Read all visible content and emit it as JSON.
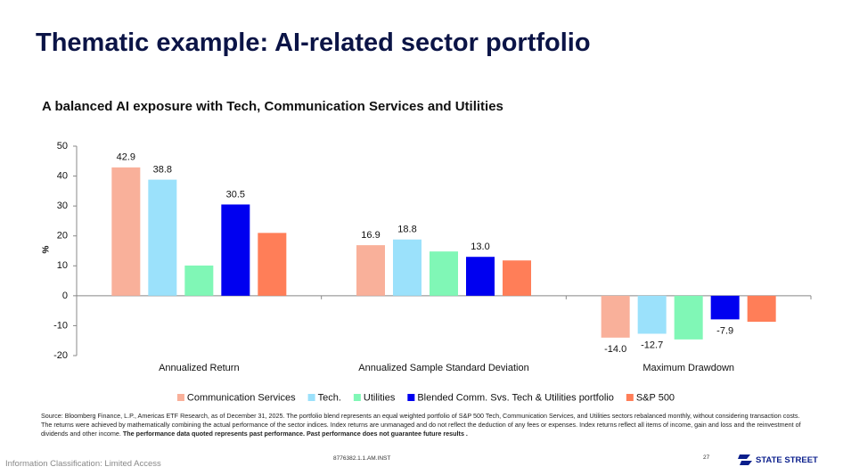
{
  "title": "Thematic example: AI-related sector portfolio",
  "subtitle": "A balanced AI exposure with Tech, Communication Services and Utilities",
  "chart_data": {
    "type": "bar",
    "categories": [
      "Annualized Return",
      "Annualized Sample Standard Deviation",
      "Maximum Drawdown"
    ],
    "series": [
      {
        "name": "Communication Services",
        "color": "#f9b09a",
        "values": [
          42.9,
          16.9,
          -14.0
        ],
        "value_labels": [
          "42.9",
          "16.9",
          "-14.0"
        ]
      },
      {
        "name": "Tech.",
        "color": "#9be1fb",
        "values": [
          38.8,
          18.8,
          -12.7
        ],
        "value_labels": [
          "38.8",
          "18.8",
          "-12.7"
        ]
      },
      {
        "name": "Utilities",
        "color": "#80f7b6",
        "values": [
          10.1,
          14.8,
          -14.6
        ]
      },
      {
        "name": "Blended Comm. Svs. Tech & Utilities portfolio",
        "color": "#0000f0",
        "values": [
          30.5,
          13.0,
          -7.9
        ],
        "value_labels": [
          "30.5",
          "13.0",
          "-7.9"
        ]
      },
      {
        "name": "S&P 500",
        "color": "#ff7e58",
        "values": [
          21.0,
          11.8,
          -8.7
        ]
      }
    ],
    "ylabel": "%",
    "ylim": [
      -20,
      50
    ],
    "yticks": [
      -20,
      -10,
      0,
      10,
      20,
      30,
      40,
      50
    ],
    "legend": "bottom"
  },
  "source": "Source: Bloomberg Finance, L.P., Americas ETF Research, as of December 31, 2025. The portfolio blend represents an equal weighted portfolio of S&P 500 Tech, Communication Services, and Utilities sectors rebalanced monthly, without considering transaction costs. The returns were achieved by mathematically combining the actual performance of the sector indices. Index returns are unmanaged and do not reflect the deduction of any fees or expenses. Index returns reflect all items of income, gain and loss and the reinvestment of dividends and other income.",
  "source_bold": "The performance data quoted represents past performance. Past performance does not guarantee future results .",
  "footer": {
    "classification": "Information Classification: Limited Access",
    "code": "8776382.1.1.AM.INST",
    "page": "27",
    "logo": "STATE STREET"
  }
}
